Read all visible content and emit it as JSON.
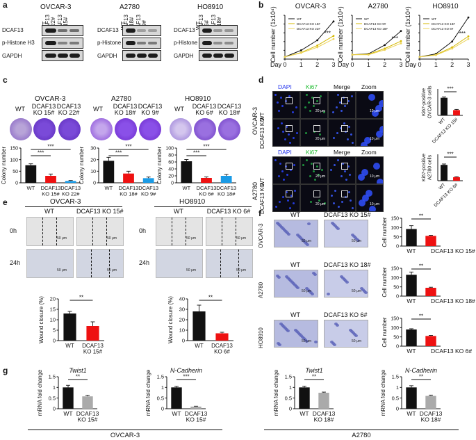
{
  "panels": {
    "a": {
      "label": "a",
      "groups": [
        {
          "cell": "OVCAR-3",
          "lanes": [
            "WT",
            "DCAF13 KO 22#",
            "DCAF13 KO 15#"
          ]
        },
        {
          "cell": "A2780",
          "lanes": [
            "WT",
            "DCAF13 KO 18#",
            "DCAF13 KO 9#"
          ]
        },
        {
          "cell": "HO8910",
          "lanes": [
            "WT",
            "DCAF13 KO 6#",
            "DCAF13 KO 18#"
          ]
        }
      ],
      "rows": [
        "DCAF13",
        "p-Histone H3",
        "GAPDH"
      ]
    },
    "b": {
      "label": "b",
      "ylabel": "Cell number (1x10⁴)",
      "xlabel": "Day",
      "sig": "***"
    },
    "c": {
      "label": "c",
      "ylabel": "Colony number",
      "sig": "***",
      "groups": [
        {
          "cell": "OVCAR-3",
          "dish_labels": [
            "WT",
            "DCAF13 KO 15#",
            "DCAF13 KO 22#"
          ]
        },
        {
          "cell": "A2780",
          "dish_labels": [
            "WT",
            "DCAF13 KO 18#",
            "DCAF13 KO 9#"
          ]
        },
        {
          "cell": "HO8910",
          "dish_labels": [
            "WT",
            "DCAF13 KO 6#",
            "DCAF13 KO 18#"
          ]
        }
      ]
    },
    "d": {
      "label": "d",
      "columns": [
        "DAPI",
        "Ki67",
        "Merge",
        "Zoom"
      ],
      "blocks": [
        {
          "cell": "OVCAR-3",
          "rows": [
            "WT",
            "DCAF13 KO"
          ],
          "scale": "20 μm",
          "zoom_scale": "10 μm",
          "ylabel": "Ki67-positive OVCAR-3 cells",
          "sig": "***",
          "bars": [
            "WT",
            "DCAF13 KO 15#"
          ]
        },
        {
          "cell": "A2780",
          "rows": [
            "WT",
            "DCAF13 KO"
          ],
          "scale": "20 μm",
          "zoom_scale": "10 μm",
          "ylabel": "Ki67-positive A2780 cells",
          "sig": "***",
          "bars": [
            "WT",
            "DCAF13 KO 6#"
          ]
        }
      ]
    },
    "e": {
      "label": "e",
      "groups": [
        {
          "cell": "OVCAR-3",
          "cols": [
            "WT",
            "DCAF13 KO 15#"
          ],
          "rows": [
            "0h",
            "24h"
          ],
          "scale": "50 μm",
          "ylabel": "Wound closure (%)",
          "sig": "**",
          "bars": [
            "WT",
            "DCAF13 KO 15#"
          ]
        },
        {
          "cell": "HO8910",
          "cols": [
            "WT",
            "DCAF13 KO 6#"
          ],
          "rows": [
            "0h",
            "24h"
          ],
          "scale": "50 μm",
          "ylabel": "Wound closure (%)",
          "sig": "**",
          "bars": [
            "WT",
            "DCAF13 KO 6#"
          ]
        }
      ]
    },
    "f": {
      "label": "f",
      "ylabel": "Cell number",
      "sig": "**",
      "scale": "50 μm",
      "rows": [
        {
          "cell": "OVCAR-3",
          "cols": [
            "WT",
            "DCAF13 KO 15#"
          ],
          "bars": [
            "WT",
            "DCAF13 KO 15#"
          ]
        },
        {
          "cell": "A2780",
          "cols": [
            "WT",
            "DCAF13 KO 18#"
          ],
          "bars": [
            "WT",
            "DCAF13 KO 18#"
          ]
        },
        {
          "cell": "HO8910",
          "cols": [
            "WT",
            "DCAF13 KO 6#"
          ],
          "bars": [
            "WT",
            "DCAF13 KO 6#"
          ]
        }
      ]
    },
    "g": {
      "label": "g",
      "ylabel": "mRNA fold change",
      "groups": [
        {
          "cell": "OVCAR-3",
          "genes": [
            "Twist1",
            "N-Cadherin"
          ],
          "sigs": [
            "**",
            "***"
          ],
          "bars": [
            "WT",
            "DCAF13 KO 15#"
          ]
        },
        {
          "cell": "A2780",
          "genes": [
            "Twist1",
            "N-Cadherin"
          ],
          "sigs": [
            "**",
            "**"
          ],
          "bars": [
            "WT",
            "DCAF13 KO 18#"
          ]
        }
      ]
    }
  },
  "colors": {
    "wt": "#111111",
    "ko_red": "#ee1111",
    "ko_blue": "#1a9be6",
    "ko_gray": "#aaaaaa",
    "ko_yellow": "#d4b800",
    "ko_yellow2": "#ecd35a",
    "dish": "#6a32c8"
  },
  "chart_data": [
    {
      "id": "b-ovcar3",
      "type": "line",
      "title": "OVCAR-3",
      "xlabel": "Day",
      "ylabel": "Cell number (1x10⁴)",
      "x": [
        0,
        1,
        2,
        3
      ],
      "xlim": [
        0,
        3
      ],
      "ylim": [
        0,
        10
      ],
      "yticks": [
        0,
        2,
        4,
        6,
        8,
        10
      ],
      "series": [
        {
          "name": "WT",
          "values": [
            0.5,
            2.0,
            4.3,
            8.6
          ]
        },
        {
          "name": "DCAF13 KO 15#",
          "values": [
            0.5,
            1.5,
            3.1,
            5.3
          ]
        },
        {
          "name": "DCAF13 KO 22#",
          "values": [
            0.5,
            1.4,
            2.7,
            4.6
          ]
        }
      ]
    },
    {
      "id": "b-a2780",
      "type": "line",
      "title": "A2780",
      "xlabel": "Day",
      "ylabel": "Cell number (1x10⁴)",
      "x": [
        0,
        1,
        2,
        3
      ],
      "xlim": [
        0,
        3
      ],
      "ylim": [
        0,
        10
      ],
      "yticks": [
        0,
        2,
        4,
        6,
        8,
        10
      ],
      "series": [
        {
          "name": "WT",
          "values": [
            1.0,
            1.2,
            3.2,
            6.4
          ]
        },
        {
          "name": "DCAF13 KO 9#",
          "values": [
            1.0,
            1.1,
            2.4,
            4.1
          ]
        },
        {
          "name": "DCAF13 KO 18#",
          "values": [
            1.0,
            1.0,
            2.1,
            3.6
          ]
        }
      ]
    },
    {
      "id": "b-ho8910",
      "type": "line",
      "title": "HO8910",
      "xlabel": "Day",
      "ylabel": "Cell number (1x10⁴)",
      "x": [
        0,
        1,
        2,
        3
      ],
      "xlim": [
        0,
        3
      ],
      "ylim": [
        0,
        10
      ],
      "yticks": [
        0,
        2,
        4,
        6,
        8,
        10
      ],
      "series": [
        {
          "name": "WT",
          "values": [
            0.5,
            1.2,
            4.0,
            9.5
          ]
        },
        {
          "name": "DCAF13 KO 18#",
          "values": [
            0.5,
            1.0,
            2.7,
            5.2
          ]
        },
        {
          "name": "DCAF13 KO 6#",
          "values": [
            0.5,
            0.9,
            2.4,
            4.6
          ]
        }
      ]
    },
    {
      "id": "c-ovcar3",
      "type": "bar",
      "categories": [
        "WT",
        "DCAF13 KO 15#",
        "DCAF13 KO 22#"
      ],
      "values": [
        76,
        30,
        8
      ],
      "errors": [
        6,
        8,
        2
      ],
      "ylim": [
        0,
        150
      ],
      "yticks": [
        0,
        50,
        100,
        150
      ],
      "ylabel": "Colony number"
    },
    {
      "id": "c-a2780",
      "type": "bar",
      "categories": [
        "WT",
        "DCAF13 KO 18#",
        "DCAF13 KO 9#"
      ],
      "values": [
        19,
        8,
        4
      ],
      "errors": [
        3,
        2,
        1
      ],
      "ylim": [
        0,
        30
      ],
      "yticks": [
        0,
        10,
        20,
        30
      ],
      "ylabel": "Colony number"
    },
    {
      "id": "c-ho8910",
      "type": "bar",
      "categories": [
        "WT",
        "DCAF13 KO 6#",
        "DCAF13 KO 18#"
      ],
      "values": [
        62,
        14,
        20
      ],
      "errors": [
        5,
        3,
        4
      ],
      "ylim": [
        0,
        100
      ],
      "yticks": [
        0,
        20,
        40,
        60,
        80,
        100
      ],
      "ylabel": "Colony number"
    },
    {
      "id": "d-ovcar3",
      "type": "bar",
      "categories": [
        "WT",
        "DCAF13 KO 15#"
      ],
      "values": [
        100,
        30
      ],
      "errors": [
        5,
        4
      ],
      "ylim": [
        0,
        150
      ],
      "yticks": [],
      "ylabel": "Ki67-positive OVCAR-3 cells"
    },
    {
      "id": "d-a2780",
      "type": "bar",
      "categories": [
        "WT",
        "DCAF13 KO 6#"
      ],
      "values": [
        90,
        20
      ],
      "errors": [
        5,
        3
      ],
      "ylim": [
        0,
        150
      ],
      "yticks": [],
      "ylabel": "Ki67-positive A2780 cells"
    },
    {
      "id": "e-ovcar3",
      "type": "bar",
      "categories": [
        "WT",
        "DCAF13 KO 15#"
      ],
      "values": [
        13,
        7
      ],
      "errors": [
        1,
        2
      ],
      "ylim": [
        0,
        20
      ],
      "yticks": [
        0,
        5,
        10,
        15,
        20
      ],
      "ylabel": "Wound closure (%)"
    },
    {
      "id": "e-ho8910",
      "type": "bar",
      "categories": [
        "WT",
        "DCAF13 KO 6#"
      ],
      "values": [
        28,
        7
      ],
      "errors": [
        6,
        1
      ],
      "ylim": [
        0,
        40
      ],
      "yticks": [
        0,
        10,
        20,
        30,
        40
      ],
      "ylabel": "Wound closure (%)"
    },
    {
      "id": "f-ovcar3",
      "type": "bar",
      "categories": [
        "WT",
        "DCAF13 KO 15#"
      ],
      "values": [
        92,
        55
      ],
      "errors": [
        18,
        3
      ],
      "ylim": [
        0,
        150
      ],
      "yticks": [
        0,
        50,
        100,
        150
      ],
      "ylabel": "Cell number"
    },
    {
      "id": "f-a2780",
      "type": "bar",
      "categories": [
        "WT",
        "DCAF13 KO 18#"
      ],
      "values": [
        115,
        45
      ],
      "errors": [
        15,
        3
      ],
      "ylim": [
        0,
        150
      ],
      "yticks": [
        0,
        50,
        100,
        150
      ],
      "ylabel": "Cell number"
    },
    {
      "id": "f-ho8910",
      "type": "bar",
      "categories": [
        "WT",
        "DCAF13 KO 6#"
      ],
      "values": [
        90,
        55
      ],
      "errors": [
        4,
        3
      ],
      "ylim": [
        0,
        150
      ],
      "yticks": [
        0,
        50,
        100,
        150
      ],
      "ylabel": "Cell number"
    },
    {
      "id": "g-ovcar3-twist1",
      "type": "bar",
      "title": "Twist1",
      "categories": [
        "WT",
        "DCAF13 KO 15#"
      ],
      "values": [
        1.0,
        0.58
      ],
      "errors": [
        0.1,
        0.05
      ],
      "ylim": [
        0,
        1.5
      ],
      "yticks": [
        0.0,
        0.5,
        1.0,
        1.5
      ],
      "ylabel": "mRNA fold change"
    },
    {
      "id": "g-ovcar3-ncad",
      "type": "bar",
      "title": "N-Cadherin",
      "categories": [
        "WT",
        "DCAF13 KO 15#"
      ],
      "values": [
        1.0,
        0.1
      ],
      "errors": [
        0.05,
        0.02
      ],
      "ylim": [
        0,
        1.5
      ],
      "yticks": [
        0.0,
        0.5,
        1.0,
        1.5
      ],
      "ylabel": "mRNA fold change"
    },
    {
      "id": "g-a2780-twist1",
      "type": "bar",
      "title": "Twist1",
      "categories": [
        "WT",
        "DCAF13 KO 18#"
      ],
      "values": [
        1.0,
        0.75
      ],
      "errors": [
        0.06,
        0.03
      ],
      "ylim": [
        0,
        1.5
      ],
      "yticks": [
        0.0,
        0.5,
        1.0,
        1.5
      ],
      "ylabel": "mRNA fold change"
    },
    {
      "id": "g-a2780-ncad",
      "type": "bar",
      "title": "N-Cadherin",
      "categories": [
        "WT",
        "DCAF13 KO 18#"
      ],
      "values": [
        1.0,
        0.6
      ],
      "errors": [
        0.08,
        0.04
      ],
      "ylim": [
        0,
        1.5
      ],
      "yticks": [
        0.0,
        0.5,
        1.0,
        1.5
      ],
      "ylabel": "mRNA fold change"
    }
  ]
}
